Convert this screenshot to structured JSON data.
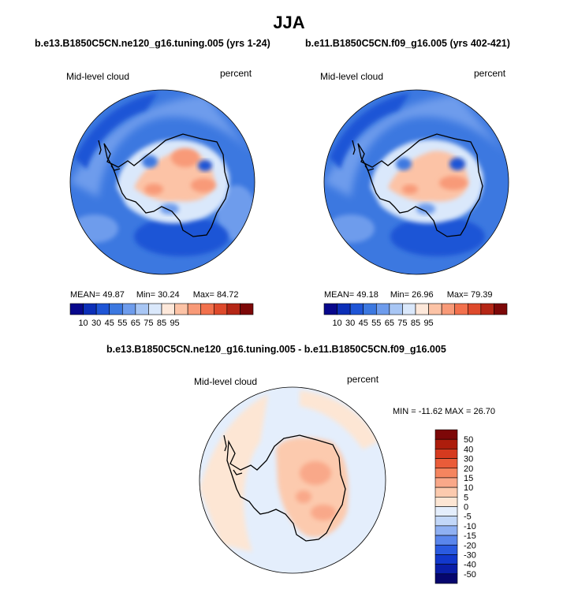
{
  "page": {
    "title": "JJA"
  },
  "colors": {
    "abs_levels": [
      "#08088c",
      "#0c2fb8",
      "#1f55d6",
      "#3c78e0",
      "#6e9cec",
      "#a8c6f4",
      "#dae8fb",
      "#fde8da",
      "#fcc3a6",
      "#f89a78",
      "#f2714d",
      "#de4a2c",
      "#b52716",
      "#7d0808"
    ],
    "diff_levels": [
      "#06066e",
      "#0a1ea8",
      "#1238cc",
      "#2a5ae0",
      "#5a86ec",
      "#8fb0f2",
      "#c2d7f8",
      "#e4eefc",
      "#fde6d4",
      "#fccaae",
      "#f9a889",
      "#f5855f",
      "#ea5c39",
      "#d53a1f",
      "#ad1d0c",
      "#7d0808"
    ],
    "continent_edge": "#000000"
  },
  "chart_data": [
    {
      "type": "heatmap",
      "projection": "south-polar-stereographic",
      "case_title": "b.e13.B1850C5CN.ne120_g16.tuning.005 (yrs 1-24)",
      "left_label": "Mid-level cloud",
      "right_label": "percent",
      "stats": {
        "mean_label": "MEAN=",
        "mean": "49.87",
        "min_label": "Min=",
        "min": "30.24",
        "max_label": "Max=",
        "max": "84.72"
      },
      "colorbar": {
        "orientation": "horizontal",
        "tick_labels": [
          "10",
          "30",
          "45",
          "55",
          "65",
          "75",
          "85",
          "95"
        ]
      }
    },
    {
      "type": "heatmap",
      "projection": "south-polar-stereographic",
      "case_title": "b.e11.B1850C5CN.f09_g16.005 (yrs 402-421)",
      "left_label": "Mid-level cloud",
      "right_label": "percent",
      "stats": {
        "mean_label": "MEAN=",
        "mean": "49.18",
        "min_label": "Min=",
        "min": "26.96",
        "max_label": "Max=",
        "max": "79.39"
      },
      "colorbar": {
        "orientation": "horizontal",
        "tick_labels": [
          "10",
          "30",
          "45",
          "55",
          "65",
          "75",
          "85",
          "95"
        ]
      }
    },
    {
      "type": "heatmap",
      "projection": "south-polar-stereographic",
      "case_title": "b.e13.B1850C5CN.ne120_g16.tuning.005 - b.e11.B1850C5CN.f09_g16.005",
      "left_label": "Mid-level cloud",
      "right_label": "percent",
      "minmax_text": "MIN = -11.62 MAX =  26.70",
      "colorbar": {
        "orientation": "vertical",
        "tick_labels": [
          "50",
          "40",
          "30",
          "20",
          "15",
          "10",
          "5",
          "0",
          "-5",
          "-10",
          "-15",
          "-20",
          "-30",
          "-40",
          "-50"
        ]
      }
    }
  ]
}
